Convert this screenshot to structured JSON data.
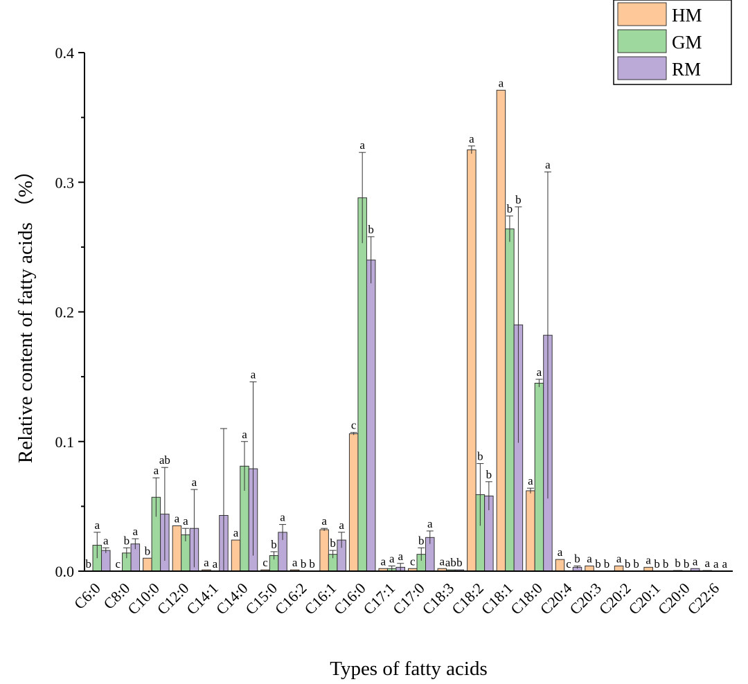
{
  "chart_data": {
    "type": "bar",
    "title": "",
    "xlabel": "Types of fatty acids",
    "ylabel": "Relative content of fatty acids （%）",
    "ylim": [
      0,
      0.4
    ],
    "yticks": [
      0.0,
      0.1,
      0.2,
      0.3,
      0.4
    ],
    "ytick_labels": [
      "0.0",
      "0.1",
      "0.2",
      "0.3",
      "0.4"
    ],
    "legend_position": "top-right",
    "categories": [
      "C6:0",
      "C8:0",
      "C10:0",
      "C12:0",
      "C14:1",
      "C14:0",
      "C15:0",
      "C16:2",
      "C16:1",
      "C16:0",
      "C17:1",
      "C17:0",
      "C18:3",
      "C18:2",
      "C18:1",
      "C18:0",
      "C20:4",
      "C20:3",
      "C20:2",
      "C20:1",
      "C20:0",
      "C22:6"
    ],
    "series": [
      {
        "name": "HM",
        "color": "#FFC899",
        "values": [
          0,
          0,
          0.01,
          0.035,
          0.001,
          0.024,
          0.001,
          0.001,
          0.032,
          0.106,
          0.002,
          0.002,
          0.002,
          0.325,
          0.371,
          0.062,
          0.009,
          0.004,
          0.004,
          0.003,
          0.0005,
          0.0005
        ],
        "errors": [
          0,
          0,
          0,
          0,
          0,
          0,
          0,
          0,
          0.001,
          0.001,
          0,
          0,
          0,
          0.003,
          0,
          0.002,
          0,
          0,
          0,
          0,
          0,
          0
        ],
        "sig": [
          "b",
          "c",
          "b",
          "a",
          "a",
          "a",
          "c",
          "a",
          "a",
          "c",
          "a",
          "c",
          "a",
          "a",
          "a",
          "a",
          "a",
          "a",
          "a",
          "a",
          "b",
          "a"
        ]
      },
      {
        "name": "GM",
        "color": "#9ED89E",
        "values": [
          0.02,
          0.014,
          0.057,
          0.028,
          0,
          0.081,
          0.012,
          0,
          0.013,
          0.288,
          0.002,
          0.013,
          0.001,
          0.059,
          0.264,
          0.145,
          0,
          0,
          0,
          0,
          0,
          0
        ],
        "errors": [
          0.01,
          0.004,
          0.015,
          0.005,
          0,
          0.019,
          0.003,
          0,
          0.003,
          0.035,
          0.002,
          0.005,
          0,
          0.024,
          0.01,
          0.003,
          0,
          0,
          0,
          0,
          0,
          0
        ],
        "sig": [
          "a",
          "b",
          "a",
          "a",
          "a",
          "a",
          "b",
          "b",
          "b",
          "a",
          "a",
          "b",
          "ab",
          "b",
          "b",
          "a",
          "c",
          "b",
          "b",
          "b",
          "b",
          "a"
        ]
      },
      {
        "name": "RM",
        "color": "#BBAAD8",
        "values": [
          0.016,
          0.021,
          0.044,
          0.033,
          0.043,
          0.079,
          0.03,
          0,
          0.024,
          0.24,
          0.003,
          0.026,
          0.001,
          0.058,
          0.19,
          0.182,
          0.003,
          0,
          0,
          0,
          0.002,
          0
        ],
        "errors": [
          0.002,
          0.004,
          0.036,
          0.03,
          0.067,
          0.067,
          0.006,
          0,
          0.006,
          0.018,
          0.003,
          0.005,
          0,
          0.011,
          0.091,
          0.126,
          0.001,
          0,
          0,
          0,
          0,
          0
        ],
        "sig": [
          "a",
          "a",
          "ab",
          "a",
          "",
          "a",
          "a",
          "b",
          "a",
          "b",
          "a",
          "a",
          "b",
          "b",
          "b",
          "a",
          "b",
          "b",
          "b",
          "b",
          "a",
          "a"
        ]
      }
    ]
  }
}
